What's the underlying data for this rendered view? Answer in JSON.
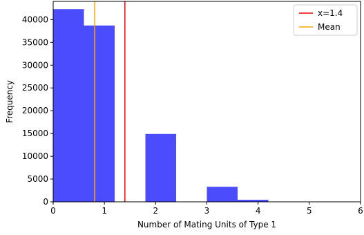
{
  "chart_data": {
    "type": "bar",
    "title": "",
    "xlabel": "Number of Mating Units of Type 1",
    "ylabel": "Frequency",
    "xlim": [
      0,
      6
    ],
    "ylim": [
      0,
      44000
    ],
    "x_ticks": [
      0,
      1,
      2,
      3,
      4,
      5,
      6
    ],
    "y_ticks": [
      0,
      5000,
      10000,
      15000,
      20000,
      25000,
      30000,
      35000,
      40000
    ],
    "grid": false,
    "legend_position": "top-right",
    "series": [
      {
        "kind": "histogram",
        "color": "#0000ff",
        "bins": [
          {
            "x0": 0.0,
            "x1": 0.6,
            "count": 42300
          },
          {
            "x0": 0.6,
            "x1": 1.2,
            "count": 38700
          },
          {
            "x0": 1.2,
            "x1": 1.8,
            "count": 0
          },
          {
            "x0": 1.8,
            "x1": 2.4,
            "count": 14900
          },
          {
            "x0": 2.4,
            "x1": 3.0,
            "count": 0
          },
          {
            "x0": 3.0,
            "x1": 3.6,
            "count": 3300
          },
          {
            "x0": 3.6,
            "x1": 4.2,
            "count": 450
          },
          {
            "x0": 4.2,
            "x1": 4.8,
            "count": 0
          },
          {
            "x0": 4.8,
            "x1": 5.4,
            "count": 0
          },
          {
            "x0": 5.4,
            "x1": 6.0,
            "count": 0
          }
        ]
      }
    ],
    "vlines": [
      {
        "name": "x=1.4",
        "x": 1.4,
        "color": "#ff0000"
      },
      {
        "name": "Mean",
        "x": 0.81,
        "color": "#ffa500"
      }
    ]
  }
}
